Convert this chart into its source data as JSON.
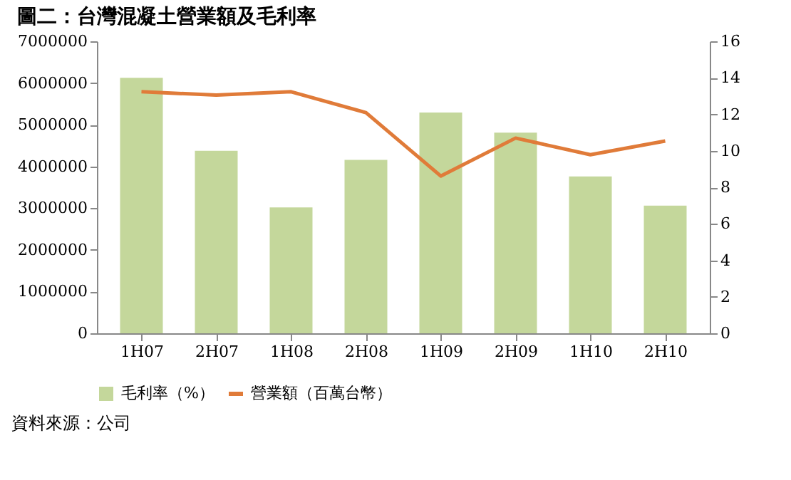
{
  "chart_data": {
    "type": "bar",
    "title": "圖二：台灣混凝土營業額及毛利率",
    "categories": [
      "1H07",
      "2H07",
      "1H08",
      "2H08",
      "1H09",
      "2H09",
      "1H10",
      "2H10"
    ],
    "series": [
      {
        "name": "毛利率（%）",
        "axis": "y2",
        "color": "#c4d79b",
        "values": [
          14.0,
          10.0,
          6.9,
          9.5,
          12.1,
          11.0,
          8.6,
          7.0
        ]
      },
      {
        "name": "營業額（百萬台幣）",
        "type": "line",
        "axis": "y",
        "color": "#e07b39",
        "values": [
          5790000,
          5710000,
          5790000,
          5290000,
          3770000,
          4680000,
          4280000,
          4610000
        ]
      }
    ],
    "ylim": [
      0,
      7000000
    ],
    "yticks": [
      0,
      1000000,
      2000000,
      3000000,
      4000000,
      5000000,
      6000000,
      7000000
    ],
    "y2lim": [
      0,
      16
    ],
    "y2ticks": [
      0,
      2,
      4,
      6,
      8,
      10,
      12,
      14,
      16
    ],
    "grid": false,
    "legend": "bottom",
    "marker": "none",
    "line_style": "solid",
    "annotations": [
      "資料來源：公司"
    ]
  }
}
